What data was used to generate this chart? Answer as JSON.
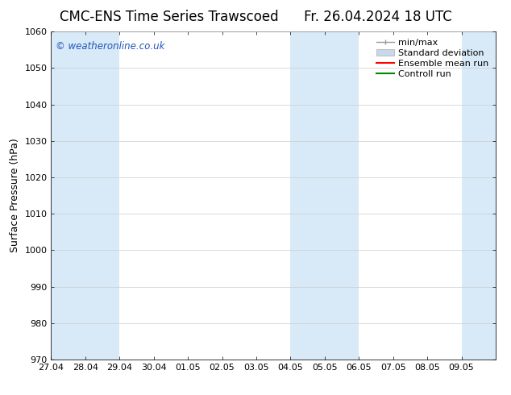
{
  "title": "CMC-ENS Time Series Trawscoed",
  "title_right": "Fr. 26.04.2024 18 UTC",
  "ylabel": "Surface Pressure (hPa)",
  "ylim": [
    970,
    1060
  ],
  "yticks": [
    970,
    980,
    990,
    1000,
    1010,
    1020,
    1030,
    1040,
    1050,
    1060
  ],
  "xtick_labels": [
    "27.04",
    "28.04",
    "29.04",
    "30.04",
    "01.05",
    "02.05",
    "03.05",
    "04.05",
    "05.05",
    "06.05",
    "07.05",
    "08.05",
    "09.05"
  ],
  "num_days": 13,
  "shaded_day_indices": [
    0,
    1,
    7,
    8,
    12
  ],
  "band_color": "#d8eaf8",
  "copyright_text": "© weatheronline.co.uk",
  "copyright_color": "#2255bb",
  "legend_items": [
    "min/max",
    "Standard deviation",
    "Ensemble mean run",
    "Controll run"
  ],
  "legend_minmax_color": "#999999",
  "legend_std_color": "#c8d8e8",
  "legend_ens_color": "#ff0000",
  "legend_ctrl_color": "#008800",
  "background_color": "#ffffff",
  "title_fontsize": 12,
  "label_fontsize": 9,
  "tick_fontsize": 8,
  "legend_fontsize": 8,
  "figsize": [
    6.34,
    4.9
  ],
  "dpi": 100
}
